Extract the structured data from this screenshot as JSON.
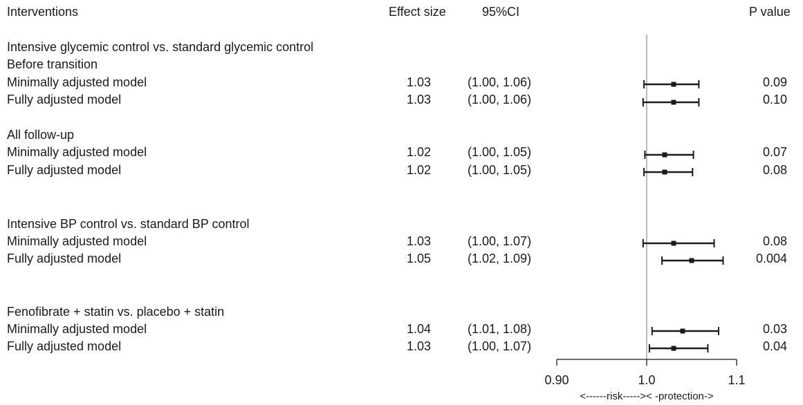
{
  "headers": {
    "interventions": "Interventions",
    "effect": "Effect size",
    "ci": "95%CI",
    "p": "P value"
  },
  "group_labels": [
    "Intensive glycemic control vs. standard glycemic control",
    "Before transition",
    "All follow-up",
    "Intensive BP control vs. standard BP control",
    "Fenofibrate  + statin vs. placebo + statin"
  ],
  "rows": [
    {
      "label": "Minimally adjusted model",
      "effect": "1.03",
      "ci": "(1.00, 1.06)",
      "p": "0.09"
    },
    {
      "label": "Fully adjusted  model",
      "effect": "1.03",
      "ci": "(1.00, 1.06)",
      "p": "0.10"
    },
    {
      "label": "Minimally adjusted model",
      "effect": "1.02",
      "ci": "(1.00, 1.05)",
      "p": "0.07"
    },
    {
      "label": "Fully adjusted  model",
      "effect": "1.02",
      "ci": "(1.00, 1.05)",
      "p": "0.08"
    },
    {
      "label": "Minimally adjusted model",
      "effect": "1.03",
      "ci": "(1.00, 1.07)",
      "p": "0.08"
    },
    {
      "label": "Fully adjusted  model",
      "effect": "1.05",
      "ci": "(1.02, 1.09)",
      "p": "0.004"
    },
    {
      "label": "Minimally adjusted model",
      "effect": "1.04",
      "ci": "(1.01, 1.08)",
      "p": "0.03"
    },
    {
      "label": "Fully adjusted  model",
      "effect": "1.03",
      "ci": "(1.00, 1.07)",
      "p": "0.04"
    }
  ],
  "chart_data": {
    "type": "forest",
    "xlim": [
      0.9,
      1.1
    ],
    "xticks": [
      0.9,
      1.0,
      1.1
    ],
    "xtick_labels": [
      "0.90",
      "1.0",
      "1.1"
    ],
    "reference_line": 1.0,
    "xlabel": "<------risk----->< -protection->",
    "points": [
      {
        "estimate": 1.03,
        "lower": 0.997,
        "upper": 1.058
      },
      {
        "estimate": 1.03,
        "lower": 0.996,
        "upper": 1.058
      },
      {
        "estimate": 1.02,
        "lower": 0.998,
        "upper": 1.052
      },
      {
        "estimate": 1.02,
        "lower": 0.997,
        "upper": 1.051
      },
      {
        "estimate": 1.03,
        "lower": 0.996,
        "upper": 1.075
      },
      {
        "estimate": 1.05,
        "lower": 1.017,
        "upper": 1.085
      },
      {
        "estimate": 1.04,
        "lower": 1.006,
        "upper": 1.08
      },
      {
        "estimate": 1.03,
        "lower": 1.003,
        "upper": 1.068
      }
    ]
  }
}
